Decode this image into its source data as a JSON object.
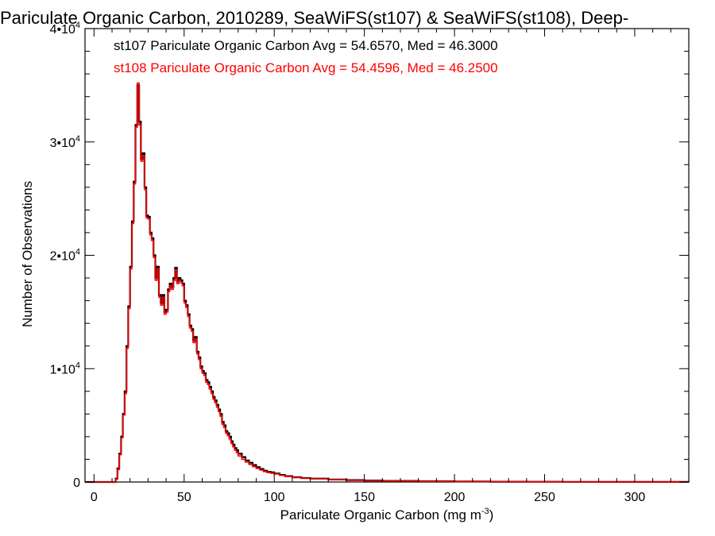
{
  "chart_data": {
    "type": "line",
    "title": "Pariculate Organic Carbon, 2010289, SeaWiFS(st107) & SeaWiFS(st108), Deep-",
    "xlabel": "Pariculate Organic Carbon (mg m",
    "xlabel_sup": "-3",
    "xlabel_end": ")",
    "ylabel": "Number of Observations",
    "xlim": [
      -5,
      330
    ],
    "ylim": [
      0,
      40000
    ],
    "xticks": [
      0,
      50,
      100,
      150,
      200,
      250,
      300
    ],
    "yticks": [
      {
        "value": 0,
        "base": "0",
        "exp": ""
      },
      {
        "value": 10000,
        "base": "1•10",
        "exp": "4"
      },
      {
        "value": 20000,
        "base": "2•10",
        "exp": "4"
      },
      {
        "value": 30000,
        "base": "3•10",
        "exp": "4"
      },
      {
        "value": 40000,
        "base": "4•10",
        "exp": "4"
      }
    ],
    "grid": false,
    "annotations": [
      {
        "text": "st107 Pariculate Organic Carbon Avg = 54.6570, Med = 46.3000",
        "color": "#000000"
      },
      {
        "text": "st108 Pariculate Organic Carbon Avg = 54.4596, Med = 46.2500",
        "color": "#ff0000"
      }
    ],
    "series": [
      {
        "color": "#000000",
        "x": [
          -5,
          10,
          12,
          13,
          14,
          15,
          16,
          17,
          18,
          19,
          20,
          21,
          22,
          23,
          24,
          25,
          26,
          27,
          28,
          29,
          30,
          31,
          32,
          33,
          34,
          35,
          36,
          37,
          38,
          39,
          40,
          41,
          42,
          43,
          44,
          45,
          46,
          47,
          48,
          49,
          50,
          51,
          52,
          53,
          54,
          55,
          56,
          57,
          58,
          59,
          60,
          61,
          62,
          63,
          64,
          65,
          66,
          67,
          68,
          69,
          70,
          71,
          72,
          73,
          74,
          75,
          76,
          77,
          78,
          79,
          80,
          82,
          84,
          86,
          88,
          90,
          92,
          94,
          96,
          98,
          100,
          103,
          106,
          110,
          115,
          120,
          130,
          140,
          150,
          160,
          180,
          200,
          220,
          240,
          260,
          280,
          300,
          330
        ],
        "y": [
          0,
          0,
          300,
          1200,
          2500,
          4000,
          6000,
          8000,
          12000,
          15500,
          19000,
          23000,
          26500,
          31500,
          35000,
          31800,
          28500,
          29000,
          26000,
          23500,
          23400,
          22000,
          21500,
          20000,
          18000,
          19000,
          16500,
          15800,
          16500,
          15000,
          15200,
          17000,
          17500,
          17200,
          18000,
          18900,
          17700,
          18000,
          17800,
          17500,
          16000,
          15600,
          14800,
          13800,
          13500,
          12500,
          12800,
          11500,
          11000,
          10200,
          9800,
          9600,
          9000,
          8800,
          8400,
          8000,
          7500,
          7200,
          6800,
          6400,
          6000,
          5300,
          5000,
          4500,
          4300,
          4000,
          3600,
          3300,
          3000,
          2800,
          2500,
          2200,
          1900,
          1700,
          1500,
          1300,
          1150,
          1000,
          900,
          850,
          750,
          620,
          520,
          420,
          350,
          300,
          220,
          170,
          130,
          100,
          70,
          45,
          30,
          20,
          12,
          8,
          5,
          0
        ]
      },
      {
        "color": "#ff0000",
        "x": [
          -5,
          10,
          12,
          13,
          14,
          15,
          16,
          17,
          18,
          19,
          20,
          21,
          22,
          23,
          24,
          25,
          26,
          27,
          28,
          29,
          30,
          31,
          32,
          33,
          34,
          35,
          36,
          37,
          38,
          39,
          40,
          41,
          42,
          43,
          44,
          45,
          46,
          47,
          48,
          49,
          50,
          51,
          52,
          53,
          54,
          55,
          56,
          57,
          58,
          59,
          60,
          61,
          62,
          63,
          64,
          65,
          66,
          67,
          68,
          69,
          70,
          71,
          72,
          73,
          74,
          75,
          76,
          77,
          78,
          79,
          80,
          82,
          84,
          86,
          88,
          90,
          92,
          94,
          96,
          98,
          100,
          103,
          106,
          110,
          115,
          120,
          130,
          140,
          150,
          160,
          180,
          200,
          220,
          240,
          260,
          280,
          300,
          330
        ],
        "y": [
          0,
          0,
          250,
          1100,
          2400,
          3900,
          5900,
          7800,
          11800,
          15300,
          18800,
          22800,
          26300,
          31300,
          35200,
          31500,
          28300,
          28800,
          25800,
          23300,
          23200,
          21800,
          21300,
          19800,
          17800,
          18800,
          16300,
          15600,
          16300,
          14800,
          15000,
          16800,
          17300,
          17000,
          17800,
          18700,
          17500,
          17800,
          17600,
          17300,
          15800,
          15400,
          14600,
          13600,
          13300,
          12300,
          12600,
          11300,
          10800,
          10000,
          9600,
          9400,
          8800,
          8600,
          8200,
          7800,
          7300,
          7000,
          6600,
          6200,
          5800,
          5100,
          4800,
          4300,
          4100,
          3800,
          3400,
          3100,
          2800,
          2600,
          2300,
          2000,
          1750,
          1550,
          1350,
          1200,
          1050,
          920,
          830,
          780,
          700,
          580,
          480,
          390,
          330,
          280,
          200,
          150,
          115,
          90,
          60,
          40,
          26,
          17,
          10,
          7,
          4,
          0
        ]
      }
    ]
  }
}
